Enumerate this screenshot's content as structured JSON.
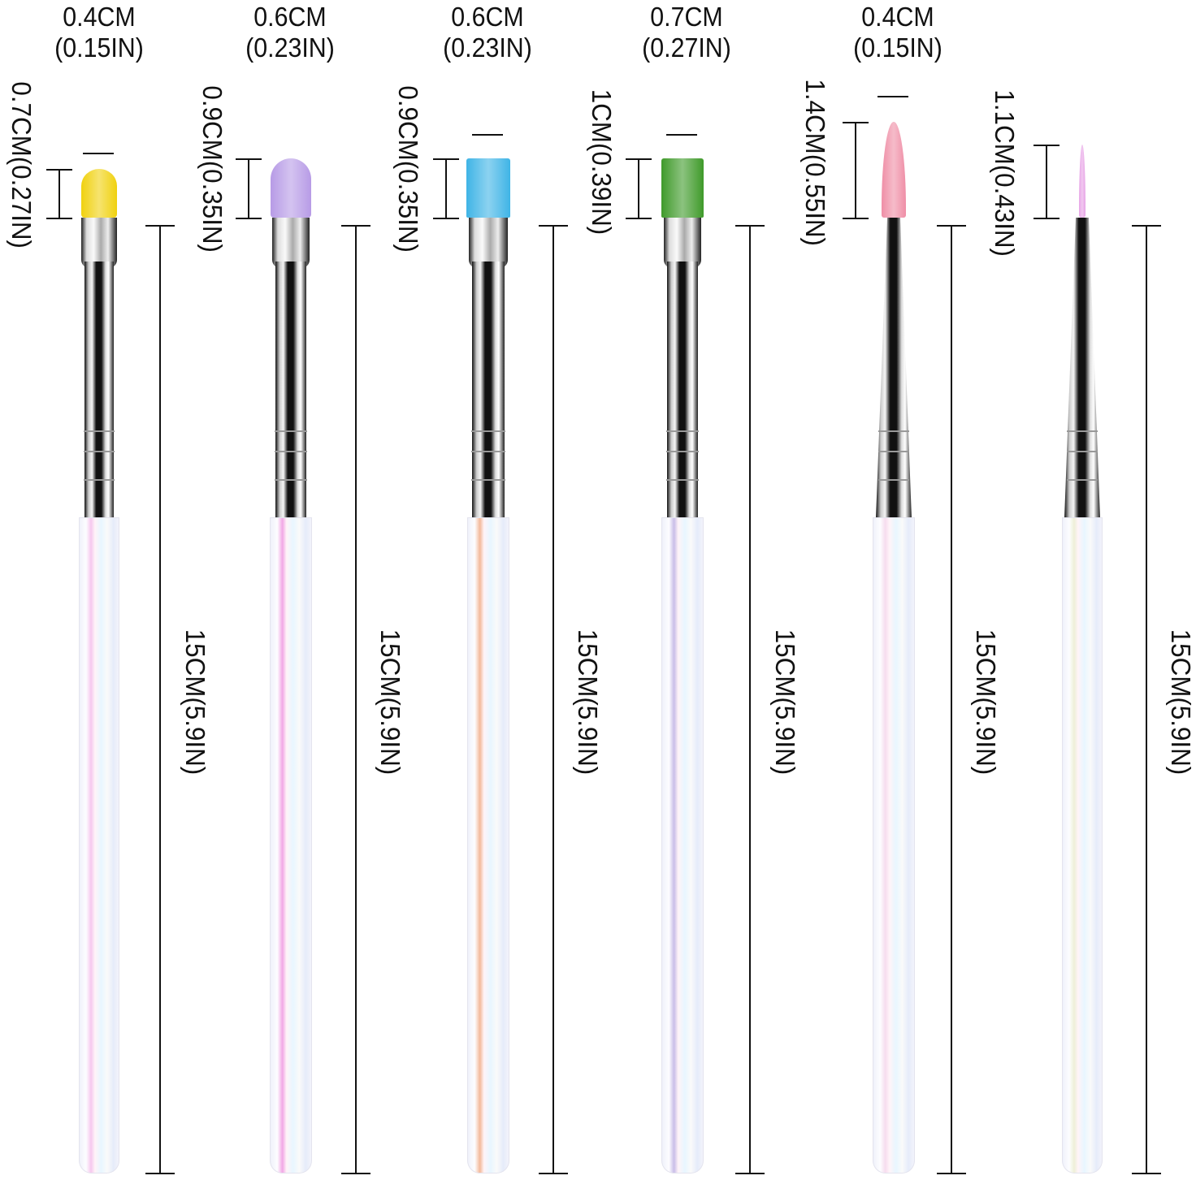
{
  "brushes": [
    {
      "width_cm": "0.4CM",
      "width_in": "(0.15IN)",
      "bristle_length": "0.7CM(0.27IN)",
      "total_length": "15CM(5.9IN)",
      "bristle_color": "#f0d10e",
      "shape": "oval",
      "handle_stripe": "#f6c8ee"
    },
    {
      "width_cm": "0.6CM",
      "width_in": "(0.23IN)",
      "bristle_length": "0.9CM(0.35IN)",
      "total_length": "15CM(5.9IN)",
      "bristle_color": "#b79be6",
      "shape": "oval",
      "handle_stripe": "#f2a7e6"
    },
    {
      "width_cm": "0.6CM",
      "width_in": "(0.23IN)",
      "bristle_length": "0.9CM(0.35IN)",
      "total_length": "15CM(5.9IN)",
      "bristle_color": "#3fb4e6",
      "shape": "flat",
      "handle_stripe": "#f3b99a"
    },
    {
      "width_cm": "0.7CM",
      "width_in": "(0.27IN)",
      "bristle_length": "1CM(0.39IN)",
      "total_length": "15CM(5.9IN)",
      "bristle_color": "#3f9a2a",
      "shape": "flat",
      "handle_stripe": "#c9bde8"
    },
    {
      "width_cm": "0.4CM",
      "width_in": "(0.15IN)",
      "bristle_length": "1.4CM(0.55IN)",
      "total_length": "15CM(5.9IN)",
      "bristle_color": "#ef8ea6",
      "shape": "pointed",
      "handle_stripe": "#f6dcee"
    },
    {
      "width_cm": "",
      "width_in": "",
      "bristle_length": "1.1CM(0.43IN)",
      "total_length": "15CM(5.9IN)",
      "bristle_color": "#e7a3e6",
      "shape": "liner",
      "handle_stripe": "#eef0d8"
    }
  ]
}
